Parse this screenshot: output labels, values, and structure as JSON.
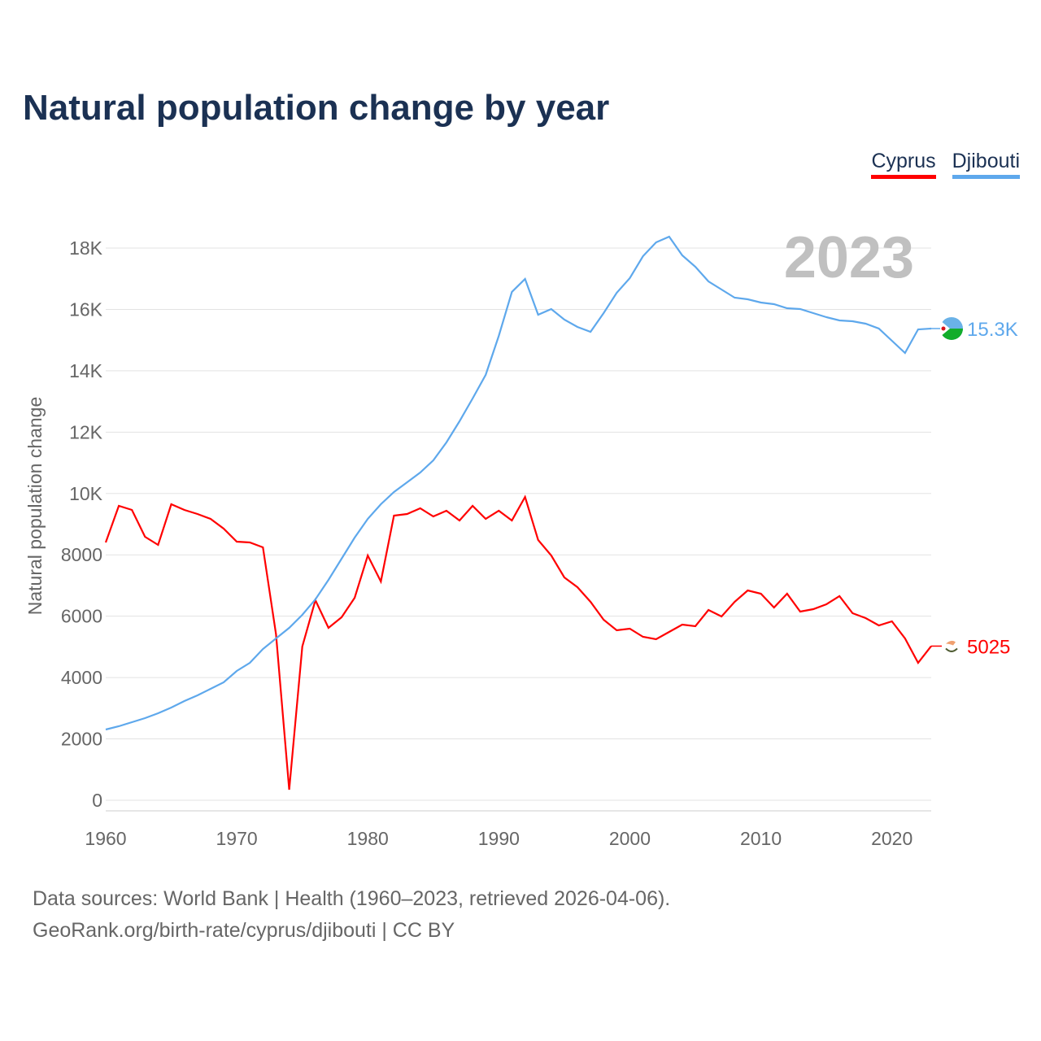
{
  "header": {
    "title": "Natural population change by year"
  },
  "legend": [
    {
      "label": "Cyprus",
      "color": "#ff0000"
    },
    {
      "label": "Djibouti",
      "color": "#5ea8ec"
    }
  ],
  "footer": {
    "line1": "Data sources: World Bank | Health (1960–2023, retrieved 2026-04-06).",
    "line2": "GeoRank.org/birth-rate/cyprus/djibouti | CC BY"
  },
  "chart_data": {
    "type": "line",
    "title": "Natural population change by year",
    "xlabel": "",
    "ylabel": "Natural population change",
    "year_label": "2023",
    "xlim": [
      1960,
      2023
    ],
    "ylim": [
      0,
      18000
    ],
    "xticks": [
      {
        "v": 1960,
        "label": "1960"
      },
      {
        "v": 1970,
        "label": "1970"
      },
      {
        "v": 1980,
        "label": "1980"
      },
      {
        "v": 1990,
        "label": "1990"
      },
      {
        "v": 2000,
        "label": "2000"
      },
      {
        "v": 2010,
        "label": "2010"
      },
      {
        "v": 2020,
        "label": "2020"
      }
    ],
    "yticks": [
      {
        "v": 0,
        "label": "0"
      },
      {
        "v": 2000,
        "label": "2000"
      },
      {
        "v": 4000,
        "label": "4000"
      },
      {
        "v": 6000,
        "label": "6000"
      },
      {
        "v": 8000,
        "label": "8000"
      },
      {
        "v": 10000,
        "label": "10K"
      },
      {
        "v": 12000,
        "label": "12K"
      },
      {
        "v": 14000,
        "label": "14K"
      },
      {
        "v": 16000,
        "label": "16K"
      },
      {
        "v": 18000,
        "label": "18K"
      }
    ],
    "x_start": 1960,
    "series": [
      {
        "name": "Cyprus",
        "color": "#ff0000",
        "end_label": "5025",
        "values": [
          8404,
          9597,
          9465,
          8590,
          8325,
          9650,
          9465,
          9332,
          9173,
          8855,
          8430,
          8404,
          8245,
          5408,
          345,
          5010,
          6522,
          5620,
          5965,
          6601,
          7980,
          7131,
          9279,
          9332,
          9518,
          9253,
          9438,
          9120,
          9597,
          9173,
          9438,
          9120,
          9889,
          8484,
          7980,
          7264,
          6946,
          6469,
          5886,
          5541,
          5594,
          5329,
          5249,
          5488,
          5727,
          5673,
          6204,
          5992,
          6469,
          6840,
          6734,
          6283,
          6734,
          6151,
          6230,
          6389,
          6654,
          6098,
          5939,
          5700,
          5833,
          5276,
          4481,
          5025
        ]
      },
      {
        "name": "Djibouti",
        "color": "#5ea8ec",
        "end_label": "15.3K",
        "values": [
          2306,
          2412,
          2545,
          2678,
          2837,
          3022,
          3234,
          3420,
          3632,
          3844,
          4215,
          4480,
          4931,
          5276,
          5620,
          6044,
          6548,
          7184,
          7874,
          8563,
          9173,
          9650,
          10048,
          10366,
          10684,
          11082,
          11665,
          12354,
          13097,
          13866,
          15138,
          16569,
          16993,
          15827,
          16012,
          15668,
          15429,
          15270,
          15880,
          16543,
          17020,
          17735,
          18186,
          18372,
          17762,
          17391,
          16914,
          16649,
          16384,
          16331,
          16225,
          16172,
          16039,
          16012,
          15880,
          15747,
          15641,
          15615,
          15535,
          15376,
          14979,
          14581,
          15350,
          15376
        ]
      }
    ]
  }
}
